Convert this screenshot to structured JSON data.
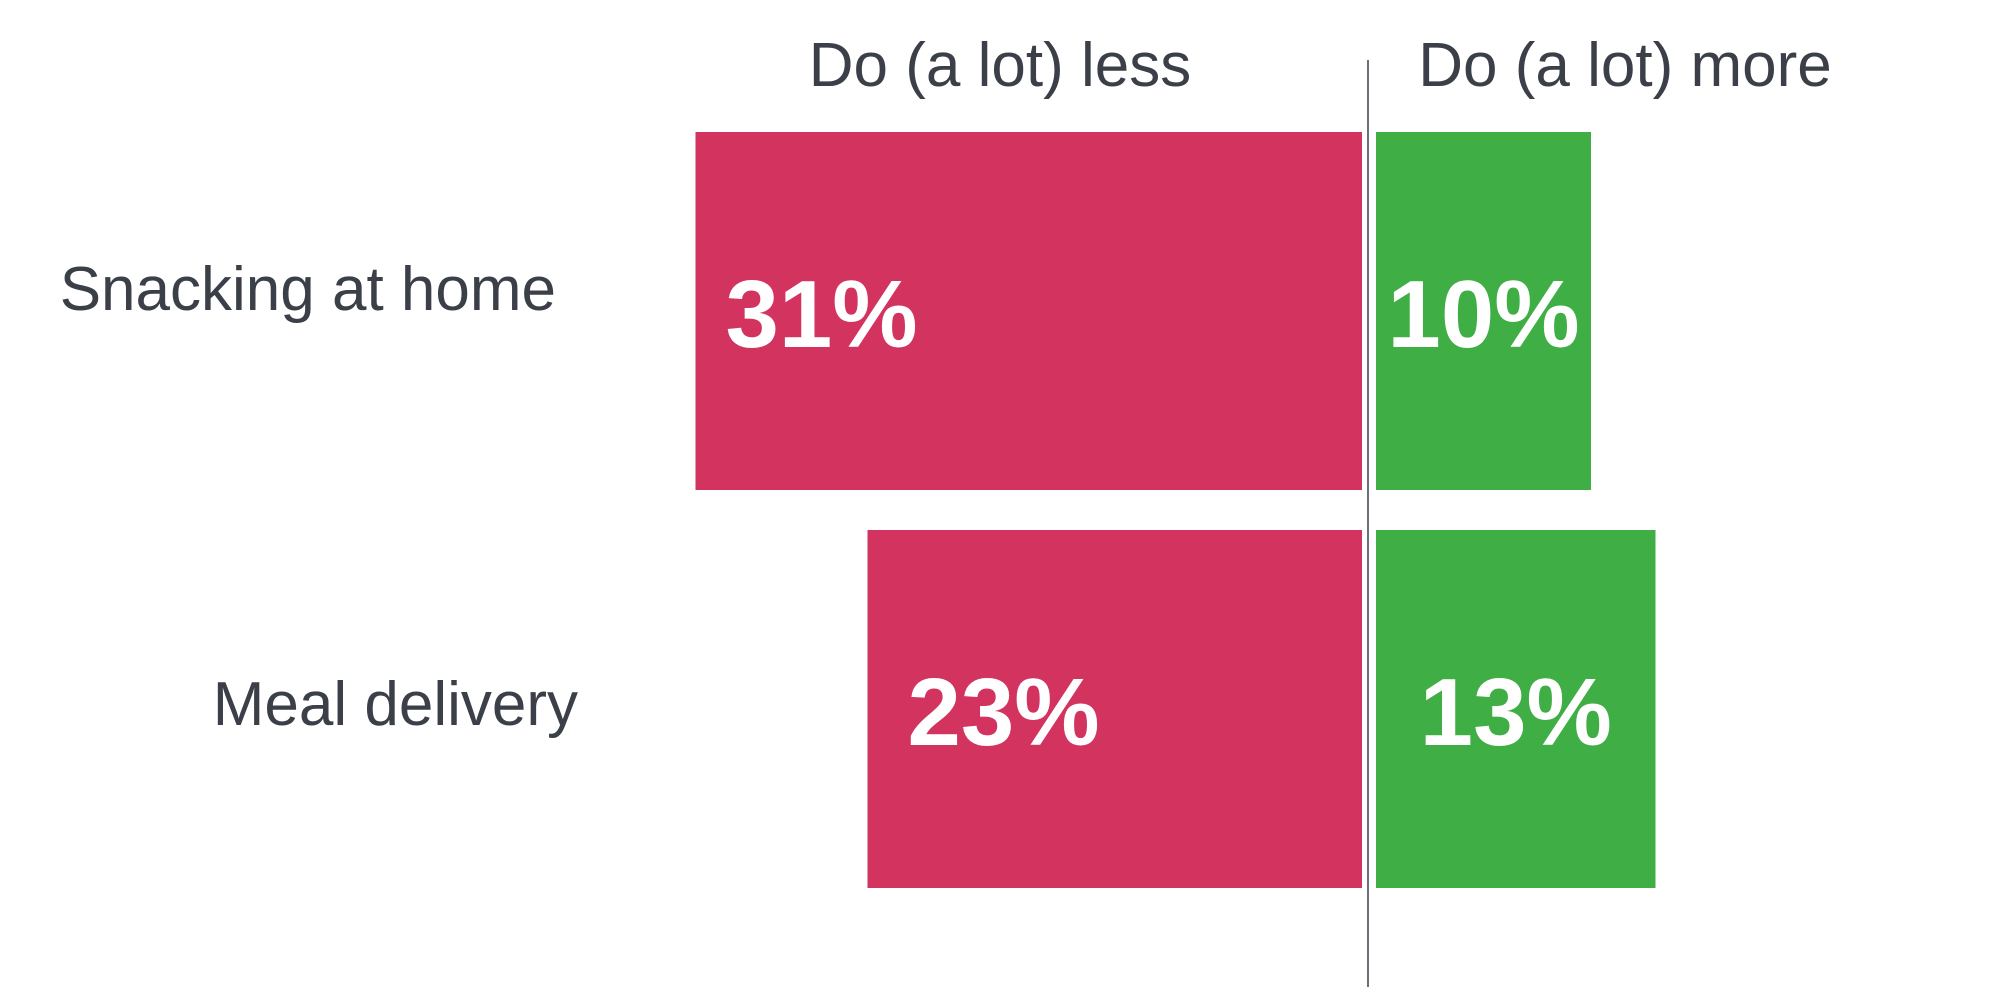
{
  "chart_data": {
    "type": "bar",
    "orientation": "horizontal-diverging",
    "title": "",
    "xlabel": "",
    "ylabel": "",
    "categories": [
      "Snacking at home",
      "Meal delivery"
    ],
    "series": [
      {
        "name": "Do (a lot) less",
        "color": "#d3335f",
        "values": [
          31,
          23
        ],
        "labels": [
          "31%",
          "23%"
        ]
      },
      {
        "name": "Do (a lot) more",
        "color": "#3fae44",
        "values": [
          10,
          13
        ],
        "labels": [
          "10%",
          "13%"
        ]
      }
    ],
    "unit": "%",
    "grid": false,
    "legend": "top"
  }
}
